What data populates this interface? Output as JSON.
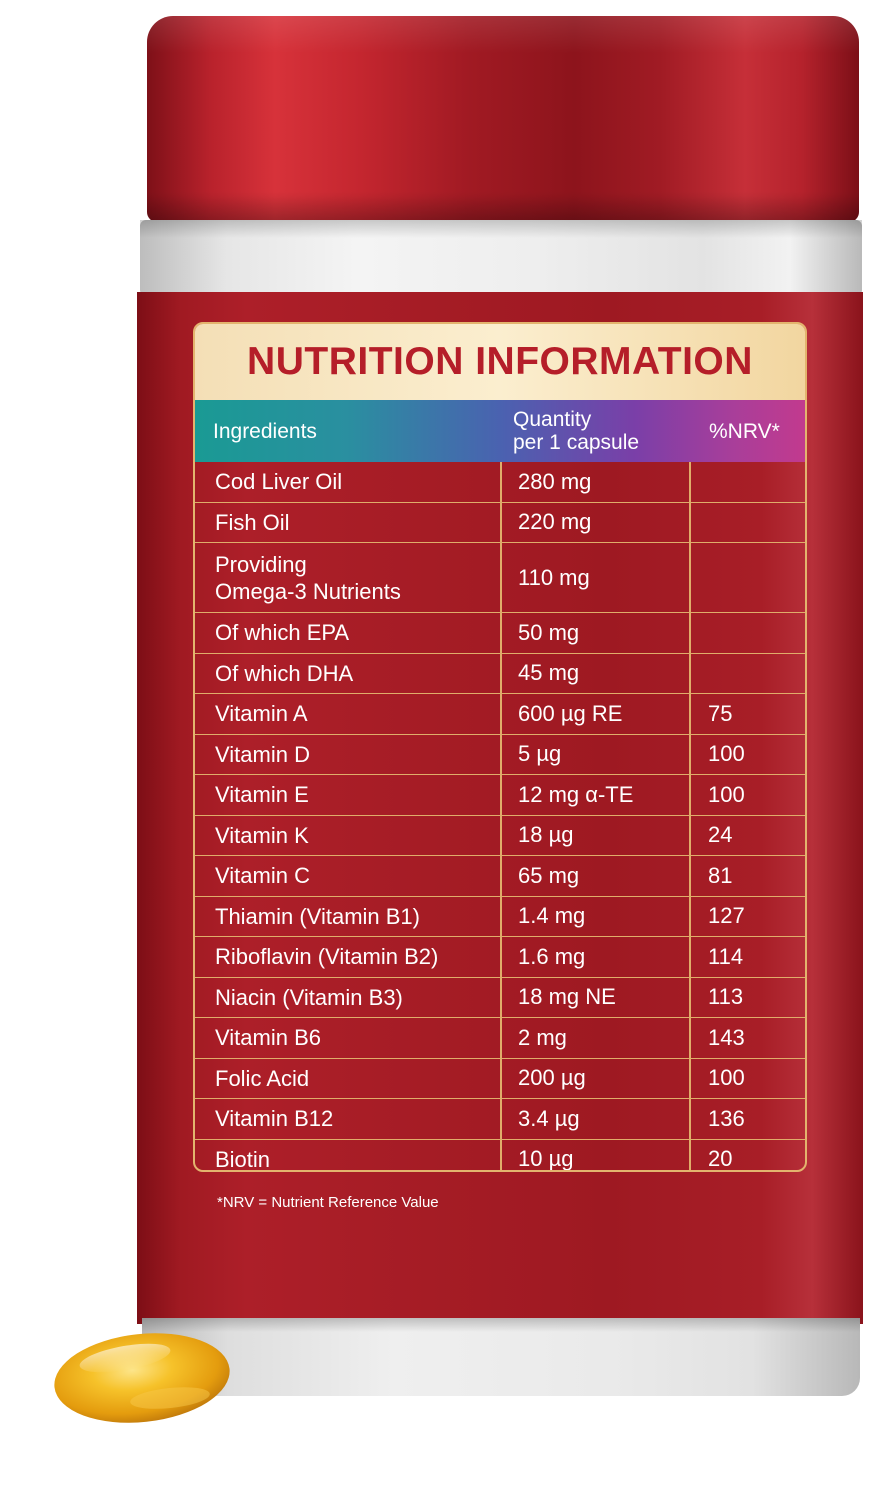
{
  "panel": {
    "title": "NUTRITION INFORMATION",
    "columns": {
      "ingredients": "Ingredients",
      "quantity_line1": "Quantity",
      "quantity_line2": "per 1 capsule",
      "nrv": "%NRV*"
    },
    "rows": [
      {
        "ingredient": "Cod Liver Oil",
        "quantity": "280 mg",
        "nrv": ""
      },
      {
        "ingredient": "Fish Oil",
        "quantity": "220 mg",
        "nrv": ""
      },
      {
        "ingredient": "Providing",
        "ingredient_line2": "Omega-3 Nutrients",
        "quantity": "110 mg",
        "nrv": ""
      },
      {
        "ingredient": "Of which EPA",
        "quantity": "50 mg",
        "nrv": ""
      },
      {
        "ingredient": "Of which DHA",
        "quantity": "45 mg",
        "nrv": ""
      },
      {
        "ingredient": "Vitamin A",
        "quantity": "600 µg RE",
        "nrv": "75"
      },
      {
        "ingredient": "Vitamin D",
        "quantity": "5 µg",
        "nrv": "100"
      },
      {
        "ingredient": "Vitamin E",
        "quantity": "12 mg α-TE",
        "nrv": "100"
      },
      {
        "ingredient": "Vitamin K",
        "quantity": "18 µg",
        "nrv": "24"
      },
      {
        "ingredient": "Vitamin C",
        "quantity": "65 mg",
        "nrv": "81"
      },
      {
        "ingredient": "Thiamin (Vitamin B1)",
        "quantity": "1.4 mg",
        "nrv": "127"
      },
      {
        "ingredient": "Riboflavin (Vitamin B2)",
        "quantity": "1.6 mg",
        "nrv": "114"
      },
      {
        "ingredient": "Niacin (Vitamin B3)",
        "quantity": "18 mg NE",
        "nrv": "113"
      },
      {
        "ingredient": "Vitamin B6",
        "quantity": "2 mg",
        "nrv": "143"
      },
      {
        "ingredient": "Folic Acid",
        "quantity": "200 µg",
        "nrv": "100"
      },
      {
        "ingredient": "Vitamin B12",
        "quantity": "3.4 µg",
        "nrv": "136"
      },
      {
        "ingredient": "Biotin",
        "quantity": "10 µg",
        "nrv": "20"
      }
    ],
    "footnote": "*NRV = Nutrient Reference Value"
  },
  "colors": {
    "bottle_red": "#a51c25",
    "title_red": "#b51e29",
    "gold_border": "#e3b46e",
    "capsule_gold": "#f0b21a"
  },
  "icons": {
    "capsule": "softgel-capsule-icon"
  }
}
